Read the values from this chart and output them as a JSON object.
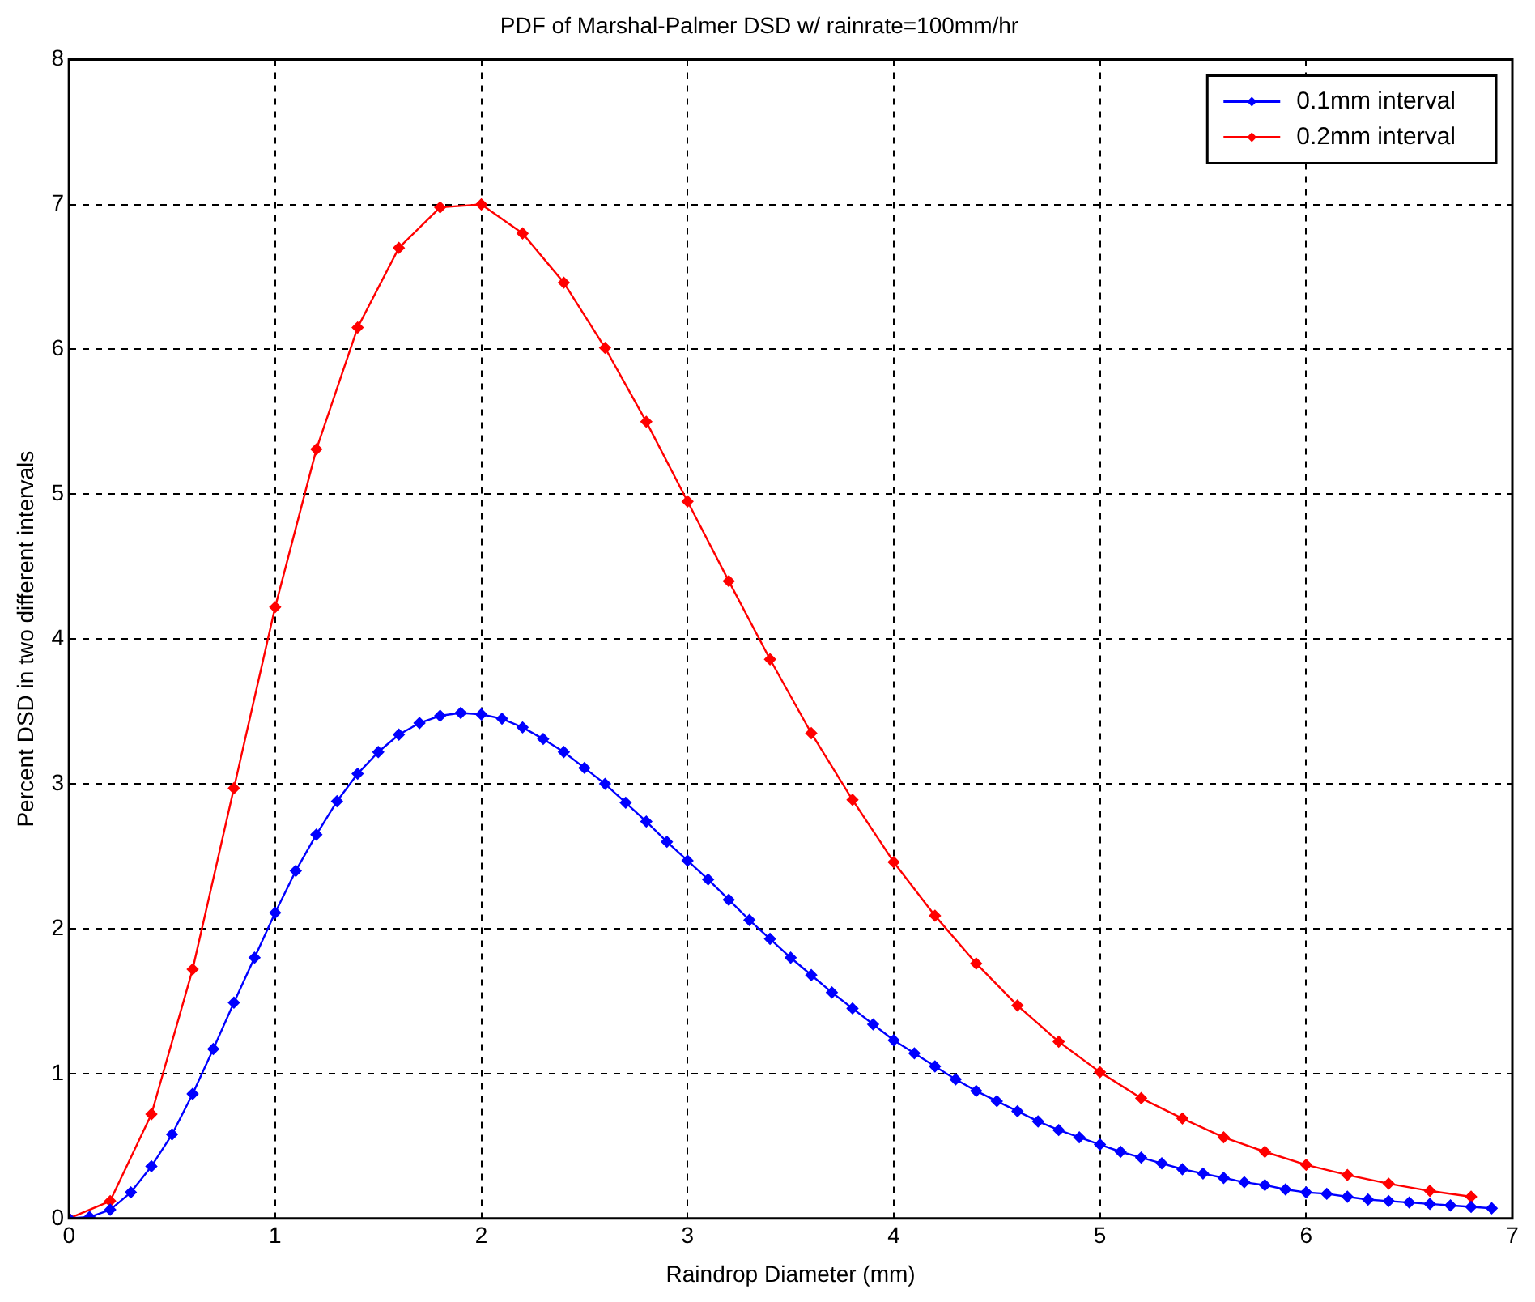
{
  "chart_data": {
    "type": "line",
    "title": "PDF of Marshal-Palmer DSD w/ rainrate=100mm/hr",
    "xlabel": "Raindrop Diameter (mm)",
    "ylabel": "Percent DSD in two different intervals",
    "xlim": [
      0,
      7
    ],
    "xticks": [
      0,
      1,
      2,
      3,
      4,
      5,
      6,
      7
    ],
    "ylim": [
      0,
      8
    ],
    "yticks": [
      0,
      1,
      2,
      3,
      4,
      5,
      6,
      7,
      8
    ],
    "grid": true,
    "legend": "top right",
    "marker": "diamond",
    "line_style": "solid",
    "series": [
      {
        "name": "0.1mm interval",
        "color": "#0000ff",
        "x": [
          0,
          0.1,
          0.2,
          0.3,
          0.4,
          0.5,
          0.6,
          0.7,
          0.8,
          0.9,
          1,
          1.1,
          1.2,
          1.3,
          1.4,
          1.5,
          1.6,
          1.7,
          1.8,
          1.9,
          2,
          2.1,
          2.2,
          2.3,
          2.4,
          2.5,
          2.6,
          2.7,
          2.8,
          2.9,
          3,
          3.1,
          3.2,
          3.3,
          3.4,
          3.5,
          3.6,
          3.7,
          3.8,
          3.9,
          4,
          4.1,
          4.2,
          4.3,
          4.4,
          4.5,
          4.6,
          4.7,
          4.8,
          4.9,
          5,
          5.1,
          5.2,
          5.3,
          5.4,
          5.5,
          5.6,
          5.7,
          5.8,
          5.9,
          6,
          6.1,
          6.2,
          6.3,
          6.4,
          6.5,
          6.6,
          6.7,
          6.8,
          6.9
        ],
        "values": [
          0,
          0.01,
          0.06,
          0.18,
          0.36,
          0.58,
          0.86,
          1.17,
          1.49,
          1.8,
          2.11,
          2.4,
          2.65,
          2.88,
          3.07,
          3.22,
          3.34,
          3.42,
          3.47,
          3.49,
          3.48,
          3.45,
          3.39,
          3.31,
          3.22,
          3.11,
          3,
          2.87,
          2.74,
          2.6,
          2.47,
          2.34,
          2.2,
          2.06,
          1.93,
          1.8,
          1.68,
          1.56,
          1.45,
          1.34,
          1.23,
          1.14,
          1.05,
          0.96,
          0.88,
          0.81,
          0.74,
          0.67,
          0.61,
          0.56,
          0.51,
          0.46,
          0.42,
          0.38,
          0.34,
          0.31,
          0.28,
          0.25,
          0.23,
          0.2,
          0.18,
          0.17,
          0.15,
          0.13,
          0.12,
          0.11,
          0.1,
          0.09,
          0.08,
          0.07
        ]
      },
      {
        "name": "0.2mm interval",
        "color": "#ff0000",
        "x": [
          0,
          0.2,
          0.4,
          0.6,
          0.8,
          1,
          1.2,
          1.4,
          1.6,
          1.8,
          2,
          2.2,
          2.4,
          2.6,
          2.8,
          3,
          3.2,
          3.4,
          3.6,
          3.8,
          4,
          4.2,
          4.4,
          4.6,
          4.8,
          5,
          5.2,
          5.4,
          5.6,
          5.8,
          6,
          6.2,
          6.4,
          6.6,
          6.8
        ],
        "values": [
          0,
          0.12,
          0.72,
          1.72,
          2.97,
          4.22,
          5.31,
          6.15,
          6.7,
          6.98,
          7,
          6.8,
          6.46,
          6.01,
          5.5,
          4.95,
          4.4,
          3.86,
          3.35,
          2.89,
          2.46,
          2.09,
          1.76,
          1.47,
          1.22,
          1.01,
          0.83,
          0.69,
          0.56,
          0.46,
          0.37,
          0.3,
          0.24,
          0.19,
          0.15
        ]
      }
    ]
  }
}
